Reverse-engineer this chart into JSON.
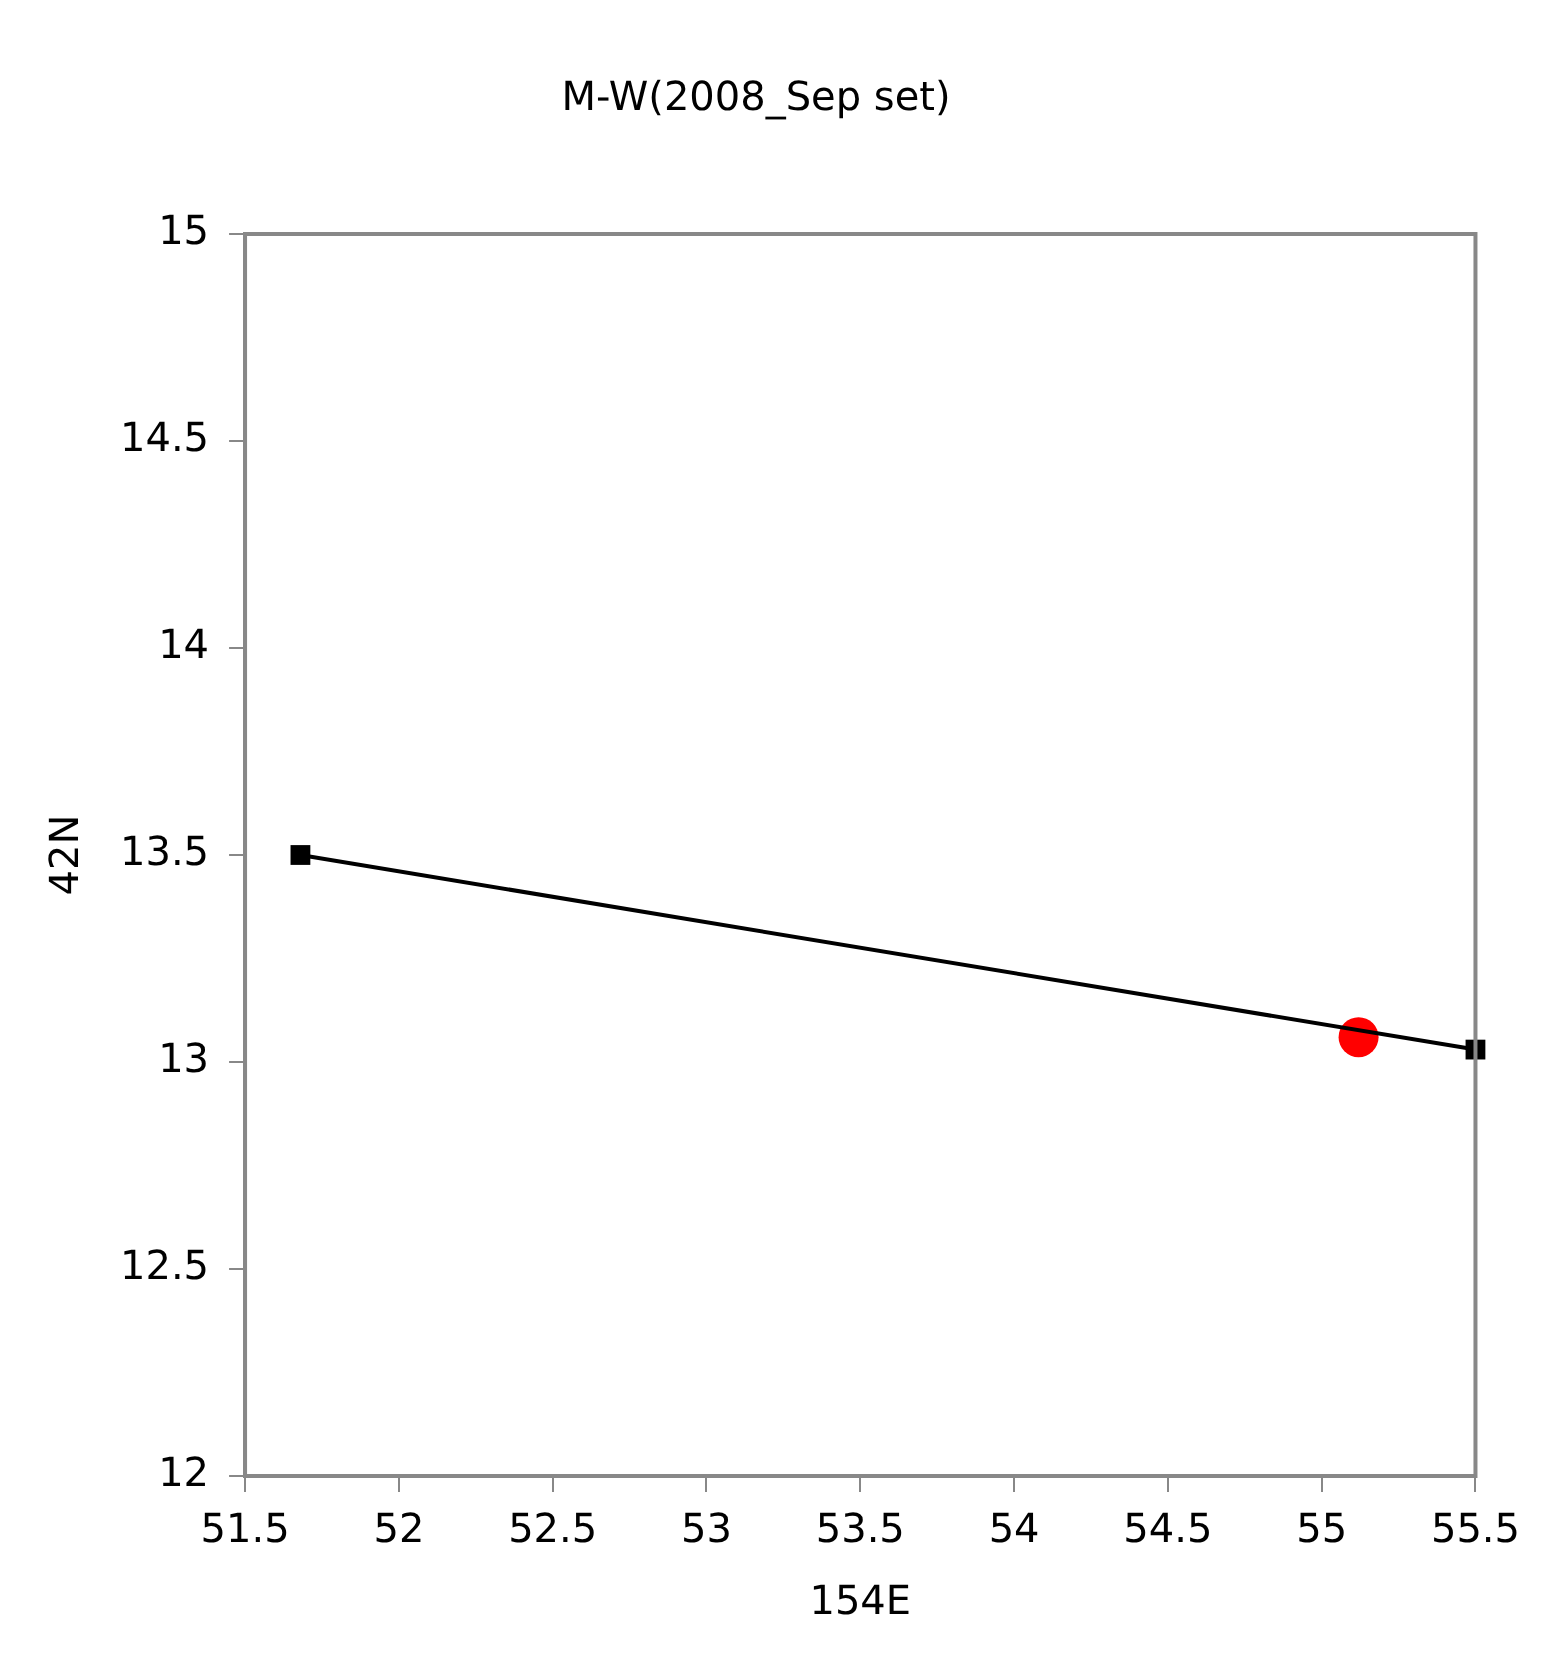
{
  "chart_data": {
    "type": "line",
    "title": "M-W(2008_Sep set)",
    "xlabel": "154E",
    "ylabel": "42N",
    "series": [
      {
        "type": "line",
        "color": "#000000",
        "marker": "square",
        "x": [
          51.68,
          55.5
        ],
        "values": [
          13.5,
          13.03
        ]
      },
      {
        "type": "scatter",
        "color": "#ff0000",
        "marker": "circle",
        "x": [
          55.12
        ],
        "values": [
          13.06
        ]
      }
    ],
    "xlim": [
      51.5,
      55.5
    ],
    "xticks": [
      51.5,
      52,
      52.5,
      53,
      53.5,
      54,
      54.5,
      55,
      55.5
    ],
    "ylim": [
      12,
      15
    ],
    "yticks": [
      12,
      12.5,
      13,
      13.5,
      14,
      14.5,
      15
    ],
    "grid": false,
    "legend": false
  }
}
